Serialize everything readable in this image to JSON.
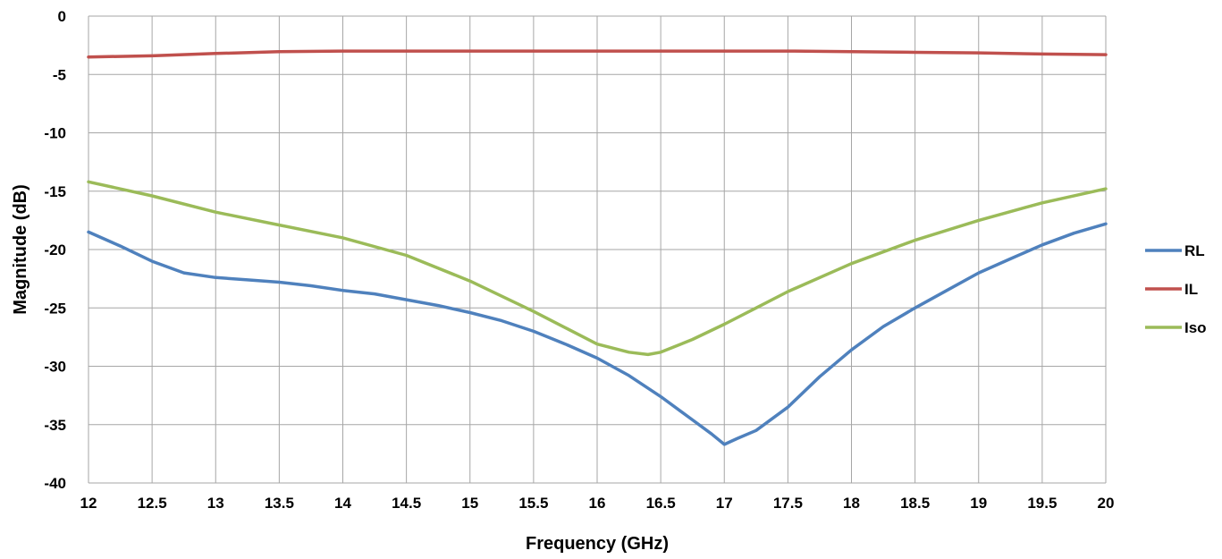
{
  "chart_data": {
    "type": "line",
    "title": "",
    "xlabel": "Frequency (GHz)",
    "ylabel": "Magnitude (dB)",
    "xlim": [
      12,
      20
    ],
    "ylim": [
      -40,
      0
    ],
    "xticks": [
      12,
      12.5,
      13,
      13.5,
      14,
      14.5,
      15,
      15.5,
      16,
      16.5,
      17,
      17.5,
      18,
      18.5,
      19,
      19.5,
      20
    ],
    "yticks": [
      0,
      -5,
      -10,
      -15,
      -20,
      -25,
      -30,
      -35,
      -40
    ],
    "xtick_labels": [
      "12",
      "12.5",
      "13",
      "13.5",
      "14",
      "14.5",
      "15",
      "15.5",
      "16",
      "16.5",
      "17",
      "17.5",
      "18",
      "18.5",
      "19",
      "19.5",
      "20"
    ],
    "ytick_labels": [
      "0",
      "-5",
      "-10",
      "-15",
      "-20",
      "-25",
      "-30",
      "-35",
      "-40"
    ],
    "grid": true,
    "legend_position": "right",
    "series": [
      {
        "name": "RL",
        "color": "#4f81bd",
        "x": [
          12,
          12.25,
          12.5,
          12.75,
          13,
          13.25,
          13.5,
          13.75,
          14,
          14.25,
          14.5,
          14.75,
          15,
          15.25,
          15.5,
          15.75,
          16,
          16.25,
          16.5,
          16.75,
          16.9,
          17,
          17.1,
          17.25,
          17.5,
          17.75,
          18,
          18.25,
          18.5,
          18.75,
          19,
          19.25,
          19.5,
          19.75,
          20
        ],
        "y": [
          -18.5,
          -19.7,
          -21.0,
          -22.0,
          -22.4,
          -22.6,
          -22.8,
          -23.1,
          -23.5,
          -23.8,
          -24.3,
          -24.8,
          -25.4,
          -26.1,
          -27.0,
          -28.1,
          -29.3,
          -30.8,
          -32.6,
          -34.6,
          -35.8,
          -36.7,
          -36.2,
          -35.5,
          -33.5,
          -30.9,
          -28.6,
          -26.6,
          -25.0,
          -23.5,
          -22.0,
          -20.8,
          -19.6,
          -18.6,
          -17.8
        ]
      },
      {
        "name": "IL",
        "color": "#c0504d",
        "x": [
          12,
          12.5,
          13,
          13.5,
          14,
          14.5,
          15,
          15.5,
          16,
          16.5,
          17,
          17.5,
          18,
          18.5,
          19,
          19.5,
          20
        ],
        "y": [
          -3.5,
          -3.4,
          -3.2,
          -3.05,
          -3.0,
          -3.0,
          -3.0,
          -3.0,
          -3.0,
          -3.0,
          -3.0,
          -3.0,
          -3.05,
          -3.1,
          -3.15,
          -3.25,
          -3.3
        ]
      },
      {
        "name": "Iso",
        "color": "#9bbb59",
        "x": [
          12,
          12.5,
          13,
          13.5,
          14,
          14.5,
          15,
          15.5,
          15.75,
          16,
          16.25,
          16.4,
          16.5,
          16.75,
          17,
          17.25,
          17.5,
          18,
          18.5,
          19,
          19.5,
          20
        ],
        "y": [
          -14.2,
          -15.4,
          -16.8,
          -17.9,
          -19.0,
          -20.5,
          -22.7,
          -25.3,
          -26.7,
          -28.1,
          -28.8,
          -29.0,
          -28.8,
          -27.7,
          -26.4,
          -25.0,
          -23.6,
          -21.2,
          -19.2,
          -17.5,
          -16.0,
          -14.8
        ]
      }
    ]
  }
}
